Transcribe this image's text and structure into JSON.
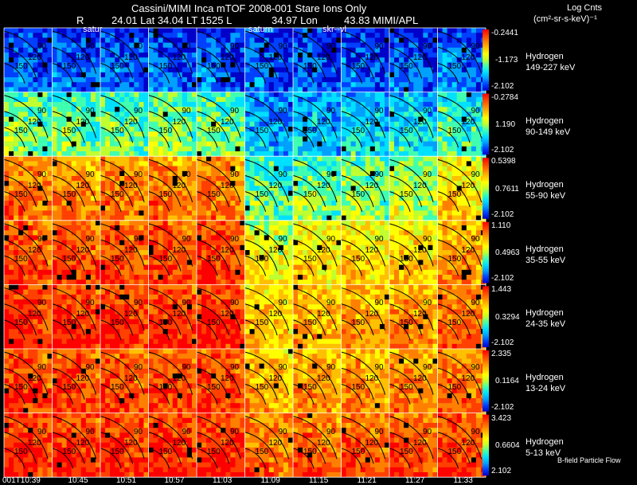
{
  "header": {
    "title": "Cassini/MIMI Inca mTOF  2008-001   Stare   Ions Only",
    "r_label": "R",
    "info": "24.01 Lat 34.04 LT 1525 L",
    "lon": "34.97 Lon",
    "mimi": "43.83  MIMI/APL"
  },
  "units": {
    "line1": "Log Cnts",
    "line2": "(cm²-sr-s-keV)⁻¹"
  },
  "panel_marks": [
    "satur",
    "saturn",
    "skr--vl"
  ],
  "contour_labels": [
    "90",
    "120",
    "150"
  ],
  "footer_note": "B-field  Particle Flow",
  "colors": {
    "background": "#000000",
    "grid_line": "#ffffff",
    "contour": "#000000",
    "scale": [
      "#0000c8",
      "#0040ff",
      "#00a0ff",
      "#00e0ff",
      "#40ffb0",
      "#c0ff30",
      "#ffff00",
      "#ffc000",
      "#ff8000",
      "#ff4000",
      "#ff0000",
      "#ffffff"
    ]
  },
  "chart_data": {
    "type": "heatmap",
    "time_labels": [
      "001T10:39",
      "10:45",
      "10:51",
      "10:57",
      "11:03",
      "11:09",
      "11:15",
      "11:21",
      "11:27",
      "11:33"
    ],
    "species": [
      {
        "name": "Hydrogen",
        "energy": "149-227 keV",
        "scale_max": "-0.2441",
        "scale_mid": "-1.173",
        "scale_min": "-2.102",
        "levels": [
          0.16,
          0.15,
          0.15,
          0.15,
          0.16,
          0.14,
          0.14,
          0.15,
          0.15,
          0.17
        ]
      },
      {
        "name": "Hydrogen",
        "energy": "90-149 keV",
        "scale_max": "-0.2784",
        "scale_mid": "1.190",
        "scale_min": "-2.102",
        "levels": [
          0.45,
          0.44,
          0.44,
          0.45,
          0.45,
          0.25,
          0.28,
          0.3,
          0.32,
          0.38
        ]
      },
      {
        "name": "Hydrogen",
        "energy": "55-90 keV",
        "scale_max": "0.5398",
        "scale_mid": "0.7611",
        "scale_min": "-2.102",
        "levels": [
          0.78,
          0.77,
          0.77,
          0.78,
          0.78,
          0.42,
          0.45,
          0.47,
          0.5,
          0.62
        ]
      },
      {
        "name": "Hydrogen",
        "energy": "35-55 keV",
        "scale_max": "1.110",
        "scale_mid": "0.4963",
        "scale_min": "-2.102",
        "levels": [
          0.86,
          0.85,
          0.86,
          0.86,
          0.87,
          0.58,
          0.62,
          0.64,
          0.66,
          0.74
        ]
      },
      {
        "name": "Hydrogen",
        "energy": "24-35 keV",
        "scale_max": "1.443",
        "scale_mid": "0.3294",
        "scale_min": "-2.102",
        "levels": [
          0.9,
          0.9,
          0.9,
          0.9,
          0.91,
          0.66,
          0.7,
          0.72,
          0.74,
          0.8
        ]
      },
      {
        "name": "Hydrogen",
        "energy": "13-24 keV",
        "scale_max": "2.335",
        "scale_mid": "0.1164",
        "scale_min": "-2.102",
        "levels": [
          0.86,
          0.86,
          0.85,
          0.86,
          0.87,
          0.7,
          0.73,
          0.74,
          0.76,
          0.8
        ]
      },
      {
        "name": "Hydrogen",
        "energy": "5-13 keV",
        "scale_max": "3.423",
        "scale_mid": "0.6604",
        "scale_min": "2.102",
        "levels": [
          0.9,
          0.9,
          0.89,
          0.9,
          0.91,
          0.8,
          0.82,
          0.83,
          0.84,
          0.86
        ]
      }
    ]
  }
}
